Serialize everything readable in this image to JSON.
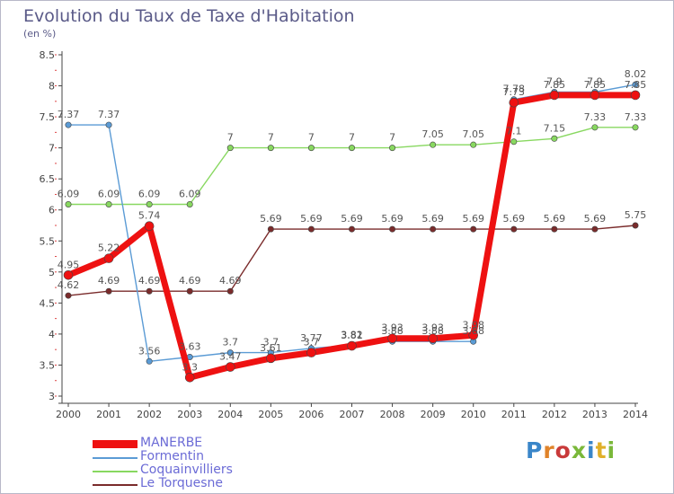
{
  "title": "Evolution du Taux de Taxe d'Habitation",
  "unit": "(en %)",
  "logo": {
    "text": "Proxiti",
    "letters": [
      {
        "ch": "P",
        "color": "#3a86c9"
      },
      {
        "ch": "r",
        "color": "#e0832a"
      },
      {
        "ch": "o",
        "color": "#c93a3a"
      },
      {
        "ch": "x",
        "color": "#7ab83a"
      },
      {
        "ch": "i",
        "color": "#3a86c9"
      },
      {
        "ch": "t",
        "color": "#e0b02a"
      },
      {
        "ch": "i",
        "color": "#7ab83a"
      }
    ]
  },
  "chart_data": {
    "type": "line",
    "title": "Evolution du Taux de Taxe d'Habitation",
    "subtitle": "(en %)",
    "x": [
      "2000",
      "2001",
      "2002",
      "2003",
      "2004",
      "2005",
      "2006",
      "2007",
      "2008",
      "2009",
      "2010",
      "2011",
      "2012",
      "2013",
      "2014"
    ],
    "ylim": [
      3,
      8.5
    ],
    "yticks": [
      "3",
      "3.5",
      "4",
      "4.5",
      "5",
      "5.5",
      "6",
      "6.5",
      "7",
      "7.5",
      "8",
      "8.5"
    ],
    "grid": false,
    "legend_position": "bottom-left",
    "series": [
      {
        "name": "MANERBE",
        "color": "#ee1111",
        "values": [
          4.95,
          5.22,
          5.74,
          3.3,
          3.47,
          3.61,
          3.7,
          3.81,
          3.93,
          3.93,
          3.98,
          7.73,
          7.85,
          7.85,
          7.85
        ],
        "labels": [
          "4.95",
          "5.22",
          "5.74",
          "3.3",
          "3.47",
          "3.61",
          "3.7",
          "3.81",
          "3.93",
          "3.93",
          "3.98",
          "7.73",
          "7.85",
          "7.85",
          "7.85"
        ]
      },
      {
        "name": "Formentin",
        "color": "#5b9bd5",
        "values": [
          7.37,
          7.37,
          3.56,
          3.63,
          3.7,
          3.7,
          3.77,
          3.82,
          3.88,
          3.88,
          3.88,
          7.78,
          7.9,
          7.9,
          8.02
        ],
        "labels": [
          "7.37",
          "7.37",
          "3.56",
          "3.63",
          "3.7",
          "3.7",
          "3.77",
          "3.82",
          "3.88",
          "3.88",
          "3.88",
          "7.78",
          "7.9",
          "7.9",
          "8.02"
        ]
      },
      {
        "name": "Coquainvilliers",
        "color": "#88d860",
        "values": [
          6.09,
          6.09,
          6.09,
          6.09,
          7,
          7,
          7,
          7,
          7,
          7.05,
          7.05,
          7.1,
          7.15,
          7.33,
          7.33
        ],
        "labels": [
          "6.09",
          "6.09",
          "6.09",
          "6.09",
          "7",
          "7",
          "7",
          "7",
          "7",
          "7.05",
          "7.05",
          "7.1",
          "7.15",
          "7.33",
          "7.33"
        ]
      },
      {
        "name": "Le Torquesne",
        "color": "#7a2b2b",
        "values": [
          4.62,
          4.69,
          4.69,
          4.69,
          4.69,
          5.69,
          5.69,
          5.69,
          5.69,
          5.69,
          5.69,
          5.69,
          5.69,
          5.69,
          5.75
        ],
        "labels": [
          "4.62",
          "4.69",
          "4.69",
          "4.69",
          "4.69",
          "5.69",
          "5.69",
          "5.69",
          "5.69",
          "5.69",
          "5.69",
          "5.69",
          "5.69",
          "5.69",
          "5.75"
        ]
      }
    ]
  }
}
